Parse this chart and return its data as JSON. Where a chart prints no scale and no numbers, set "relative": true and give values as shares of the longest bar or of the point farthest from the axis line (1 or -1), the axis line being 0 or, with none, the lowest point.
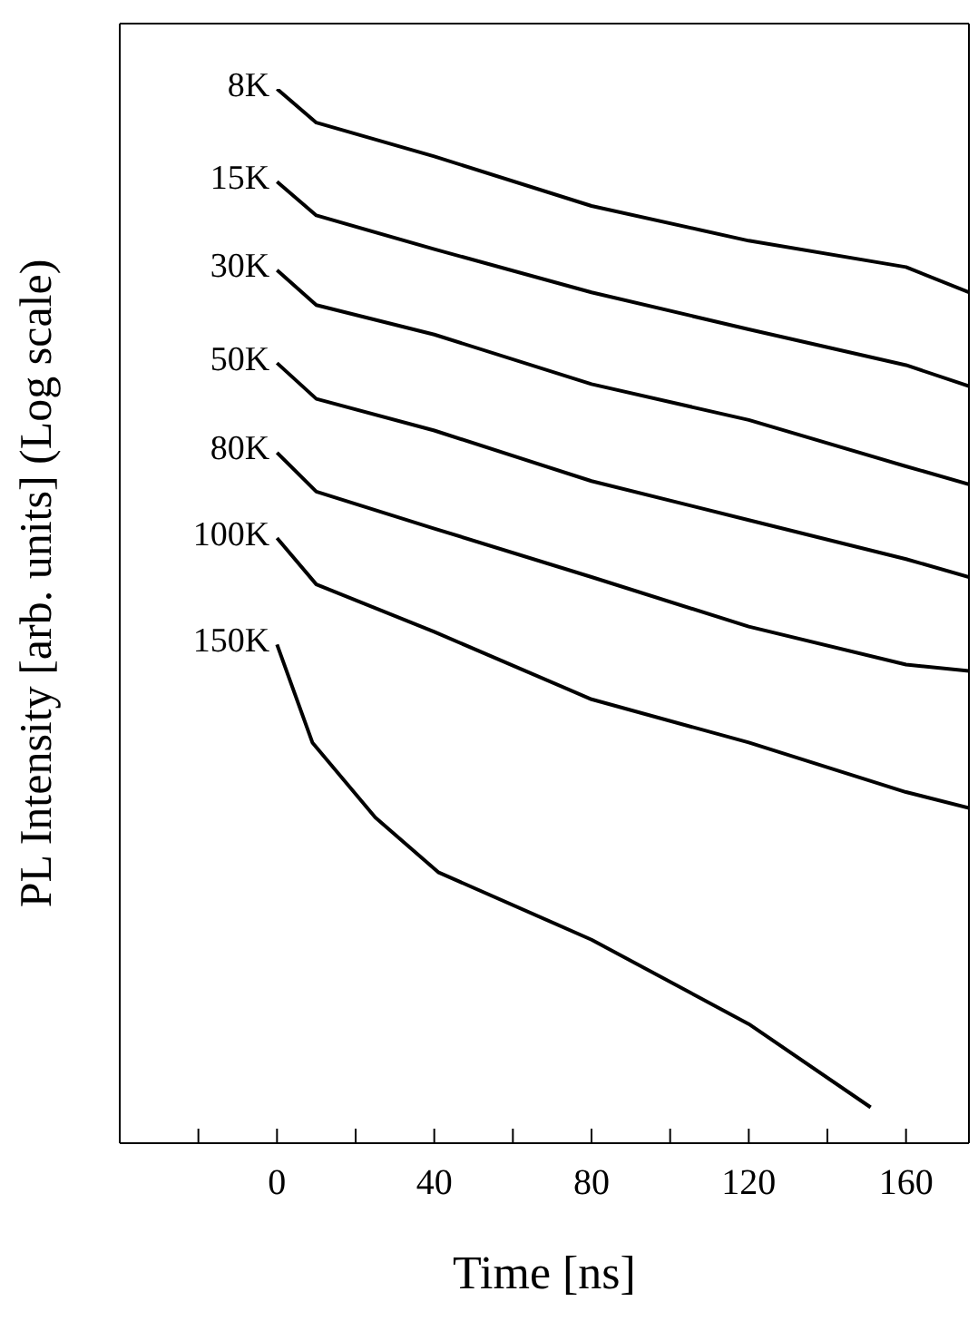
{
  "chart_data": {
    "type": "line",
    "xlabel": "Time [ns]",
    "ylabel": "PL Intensity [arb. units] (Log scale)",
    "relative": true,
    "marker": "none",
    "line_style": "solid",
    "xlim": [
      -40,
      176
    ],
    "xticks": [
      {
        "value": -20,
        "label": null
      },
      0,
      {
        "value": 20,
        "label": null
      },
      40,
      {
        "value": 60,
        "label": null
      },
      80,
      {
        "value": 100,
        "label": null
      },
      120,
      {
        "value": 140,
        "label": null
      },
      160
    ],
    "series": [
      {
        "name": "8K",
        "color": "#000000",
        "x": [
          0,
          10,
          40,
          80,
          120,
          160,
          176
        ],
        "values": [
          1.0,
          0.968,
          0.936,
          0.889,
          0.856,
          0.831,
          0.807
        ]
      },
      {
        "name": "15K",
        "color": "#000000",
        "x": [
          0,
          10,
          40,
          80,
          120,
          160,
          176
        ],
        "values": [
          0.912,
          0.88,
          0.848,
          0.807,
          0.772,
          0.738,
          0.718
        ]
      },
      {
        "name": "30K",
        "color": "#000000",
        "x": [
          0,
          10,
          40,
          80,
          120,
          160,
          176
        ],
        "values": [
          0.828,
          0.795,
          0.767,
          0.72,
          0.686,
          0.642,
          0.625
        ]
      },
      {
        "name": "50K",
        "color": "#000000",
        "x": [
          0,
          10,
          40,
          80,
          120,
          160,
          176
        ],
        "values": [
          0.74,
          0.706,
          0.676,
          0.628,
          0.591,
          0.554,
          0.537
        ]
      },
      {
        "name": "80K",
        "color": "#000000",
        "x": [
          0,
          10,
          40,
          80,
          120,
          160,
          176
        ],
        "values": [
          0.655,
          0.618,
          0.583,
          0.537,
          0.49,
          0.454,
          0.448
        ]
      },
      {
        "name": "100K",
        "color": "#000000",
        "x": [
          0,
          10,
          40,
          80,
          120,
          160,
          176
        ],
        "values": [
          0.574,
          0.53,
          0.485,
          0.421,
          0.38,
          0.333,
          0.318
        ]
      },
      {
        "name": "150K",
        "color": "#000000",
        "x": [
          0,
          9,
          25,
          41,
          80,
          120,
          151
        ],
        "values": [
          0.473,
          0.38,
          0.309,
          0.257,
          0.193,
          0.113,
          0.034
        ]
      }
    ]
  }
}
